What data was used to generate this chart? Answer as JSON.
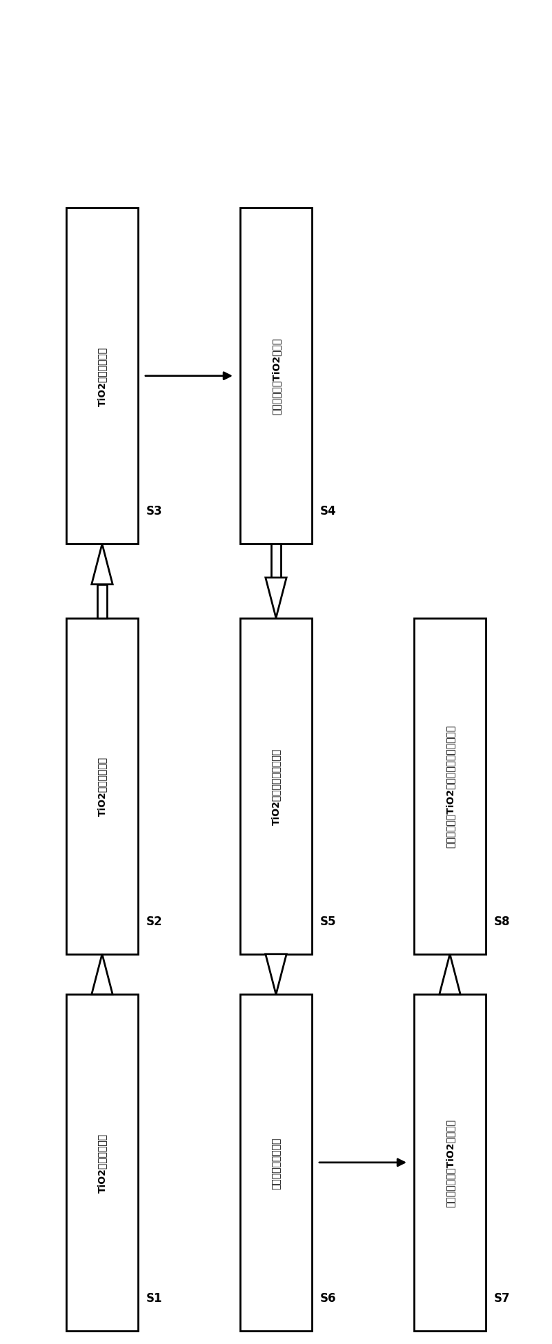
{
  "background": "#ffffff",
  "boxes": [
    {
      "id": "S1",
      "label": "TiO2颗粒超声分散",
      "step": "S1",
      "col": 0,
      "row": 0
    },
    {
      "id": "S2",
      "label": "TiO2溶液水热反应",
      "step": "S2",
      "col": 0,
      "row": 1
    },
    {
      "id": "S3",
      "label": "TiO2反应沉淀清洗",
      "step": "S3",
      "col": 0,
      "row": 2
    },
    {
      "id": "S4",
      "label": "硝酸处理获得TiO2纳米管",
      "step": "S4",
      "col": 1,
      "row": 2
    },
    {
      "id": "S5",
      "label": "TiO2纳米管烷硫基酸处理",
      "step": "S5",
      "col": 1,
      "row": 1
    },
    {
      "id": "S6",
      "label": "疏基乙酸吸附后清洗",
      "step": "S6",
      "col": 1,
      "row": 0
    },
    {
      "id": "S7",
      "label": "银量子点沉积于TiO2纳米管上",
      "step": "S7",
      "col": 2,
      "row": 0
    },
    {
      "id": "S8",
      "label": "银量子点修饰TiO2纳米管于不同温度下退火",
      "step": "S8",
      "col": 2,
      "row": 1
    }
  ],
  "box_width": 0.12,
  "box_color": "#ffffff",
  "box_edge_color": "#000000",
  "text_color": "#000000",
  "arrow_color": "#000000"
}
